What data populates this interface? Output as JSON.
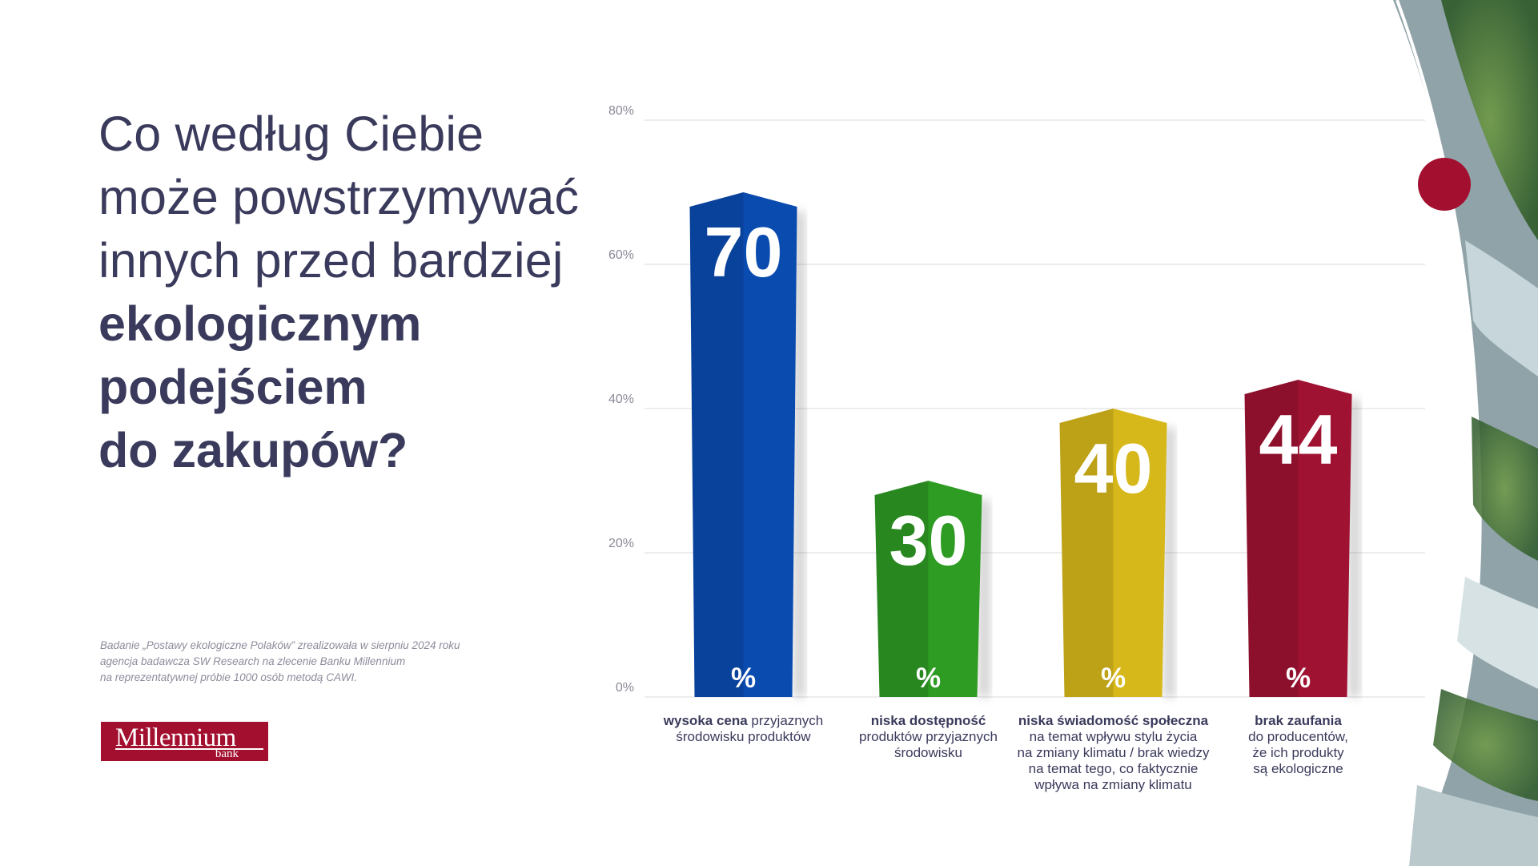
{
  "headline": {
    "light_lines": [
      "Co według Ciebie",
      "może powstrzymywać",
      "innych przed bardziej"
    ],
    "bold_lines": [
      "ekologicznym",
      "podejściem",
      "do zakupów?"
    ]
  },
  "note": {
    "lines": [
      "Badanie „Postawy ekologiczne Polaków” zrealizowała w sierpniu 2024 roku",
      "agencja badawcza SW Research na zlecenie Banku Millennium",
      "na reprezentatywnej próbie 1000 osób metodą CAWI."
    ]
  },
  "logo": {
    "name": "Millennium",
    "sub": "bank"
  },
  "colors": {
    "blue": "#0a4bb0",
    "green": "#2e9b23",
    "yellow": "#d7b81a",
    "red": "#9f1232",
    "accent_dot": "#a3102f",
    "text": "#3a3a5c",
    "grid": "#e2e2e8"
  },
  "chart_data": {
    "type": "bar",
    "ylim": [
      0,
      80
    ],
    "y_ticks": [
      "0%",
      "20%",
      "40%",
      "60%",
      "80%"
    ],
    "grid": true,
    "value_suffix": "%",
    "categories": [
      {
        "bold": "wysoka cena",
        "rest_first": " przyjaznych",
        "lines": [
          "środowisku produktów"
        ]
      },
      {
        "bold": "niska dostępność",
        "rest_first": "",
        "lines": [
          "produktów przyjaznych",
          "środowisku"
        ]
      },
      {
        "bold": "niska świadomość społeczna",
        "rest_first": "",
        "lines": [
          "na temat wpływu stylu życia",
          "na zmiany klimatu / brak wiedzy",
          "na temat tego, co faktycznie",
          "wpływa na zmiany klimatu"
        ]
      },
      {
        "bold": "brak zaufania",
        "rest_first": "",
        "lines": [
          "do producentów,",
          "że ich produkty",
          "są ekologiczne"
        ]
      }
    ],
    "values": [
      70,
      30,
      40,
      44
    ],
    "value_labels": [
      "70",
      "30",
      "40",
      "44"
    ],
    "bar_colors": [
      "blue",
      "green",
      "yellow",
      "red"
    ]
  }
}
